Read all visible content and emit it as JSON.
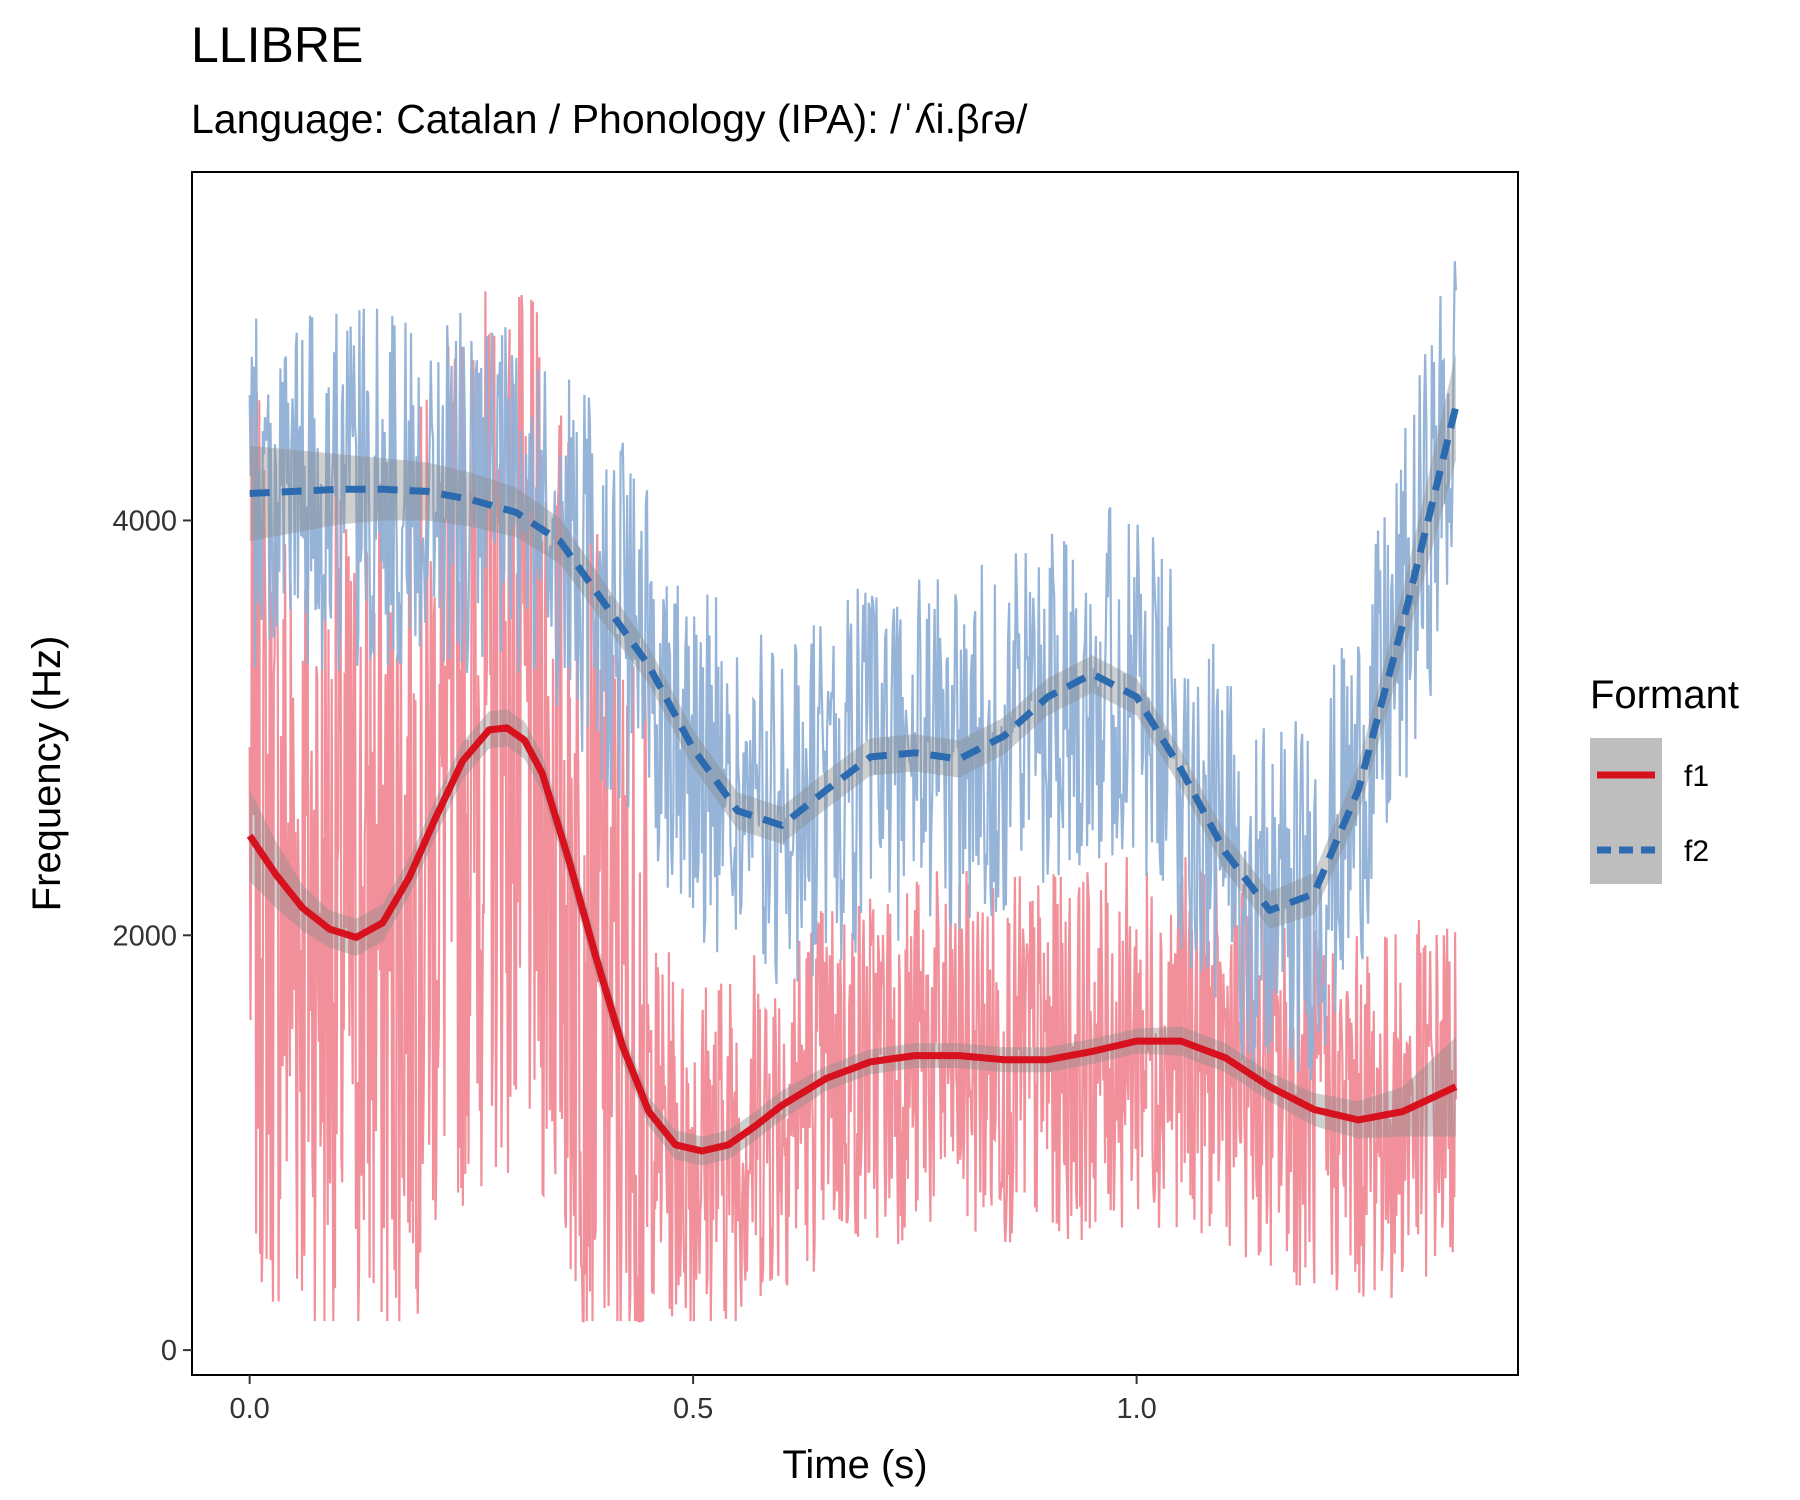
{
  "chart_data": {
    "type": "line",
    "title": "LLIBRE",
    "subtitle": "Language: Catalan / Phonology (IPA): /ˈʎi.βɾə/",
    "xlabel": "Time (s)",
    "ylabel": "Frequency (Hz)",
    "xlim": [
      -0.065,
      1.43
    ],
    "ylim": [
      -120,
      5680
    ],
    "x_ticks": [
      0.0,
      0.5,
      1.0
    ],
    "x_tick_labels": [
      "0.0",
      "0.5",
      "1.0"
    ],
    "y_ticks": [
      0,
      2000,
      4000
    ],
    "y_tick_labels": [
      "0",
      "2000",
      "4000"
    ],
    "grid": false,
    "legend": {
      "title": "Formant",
      "position": "right",
      "entries": [
        "f1",
        "f2"
      ]
    },
    "colors": {
      "f1_raw": "#F08A95",
      "f1_smooth": "#D7111E",
      "f2_raw": "#8FB0D6",
      "f2_smooth": "#2D6BB0",
      "ribbon": "#8C8C8C"
    },
    "series": [
      {
        "name": "f1",
        "line_style": "solid",
        "smooth": {
          "x": [
            0.0,
            0.03,
            0.06,
            0.09,
            0.12,
            0.15,
            0.18,
            0.21,
            0.24,
            0.27,
            0.29,
            0.31,
            0.33,
            0.36,
            0.39,
            0.42,
            0.45,
            0.48,
            0.51,
            0.54,
            0.57,
            0.6,
            0.65,
            0.7,
            0.75,
            0.8,
            0.85,
            0.9,
            0.95,
            1.0,
            1.05,
            1.1,
            1.15,
            1.2,
            1.25,
            1.3,
            1.36
          ],
          "y": [
            2480,
            2290,
            2130,
            2030,
            1990,
            2060,
            2280,
            2570,
            2840,
            2990,
            3000,
            2940,
            2780,
            2360,
            1900,
            1470,
            1150,
            990,
            960,
            990,
            1080,
            1180,
            1310,
            1390,
            1420,
            1420,
            1400,
            1400,
            1440,
            1490,
            1490,
            1410,
            1270,
            1160,
            1110,
            1150,
            1270
          ],
          "ribbon_half_width": [
            220,
            160,
            110,
            90,
            90,
            90,
            90,
            90,
            90,
            90,
            90,
            90,
            90,
            90,
            90,
            80,
            70,
            70,
            70,
            70,
            70,
            70,
            60,
            60,
            60,
            60,
            60,
            60,
            60,
            60,
            70,
            70,
            70,
            80,
            90,
            120,
            240
          ]
        },
        "raw": {
          "x_start": 0.0,
          "x_end": 1.36,
          "y_min": 140,
          "y_max": 5470,
          "note_unused": null
        }
      },
      {
        "name": "f2",
        "line_style": "dashed",
        "smooth": {
          "x": [
            0.0,
            0.05,
            0.1,
            0.15,
            0.2,
            0.25,
            0.3,
            0.35,
            0.4,
            0.45,
            0.5,
            0.55,
            0.6,
            0.65,
            0.7,
            0.75,
            0.8,
            0.85,
            0.9,
            0.95,
            1.0,
            1.05,
            1.1,
            1.15,
            1.2,
            1.25,
            1.3,
            1.36
          ],
          "y": [
            4130,
            4140,
            4150,
            4150,
            4140,
            4100,
            4040,
            3900,
            3600,
            3300,
            2900,
            2600,
            2530,
            2700,
            2860,
            2880,
            2850,
            2960,
            3150,
            3260,
            3150,
            2800,
            2400,
            2120,
            2200,
            2700,
            3500,
            4550
          ],
          "ribbon_half_width": [
            230,
            200,
            170,
            150,
            140,
            130,
            120,
            110,
            100,
            90,
            90,
            90,
            90,
            90,
            90,
            90,
            90,
            90,
            90,
            90,
            90,
            90,
            90,
            90,
            100,
            120,
            160,
            260
          ]
        },
        "raw": {
          "x_start": 0.0,
          "x_end": 1.36,
          "y_min": 1100,
          "y_max": 5300
        }
      }
    ]
  }
}
